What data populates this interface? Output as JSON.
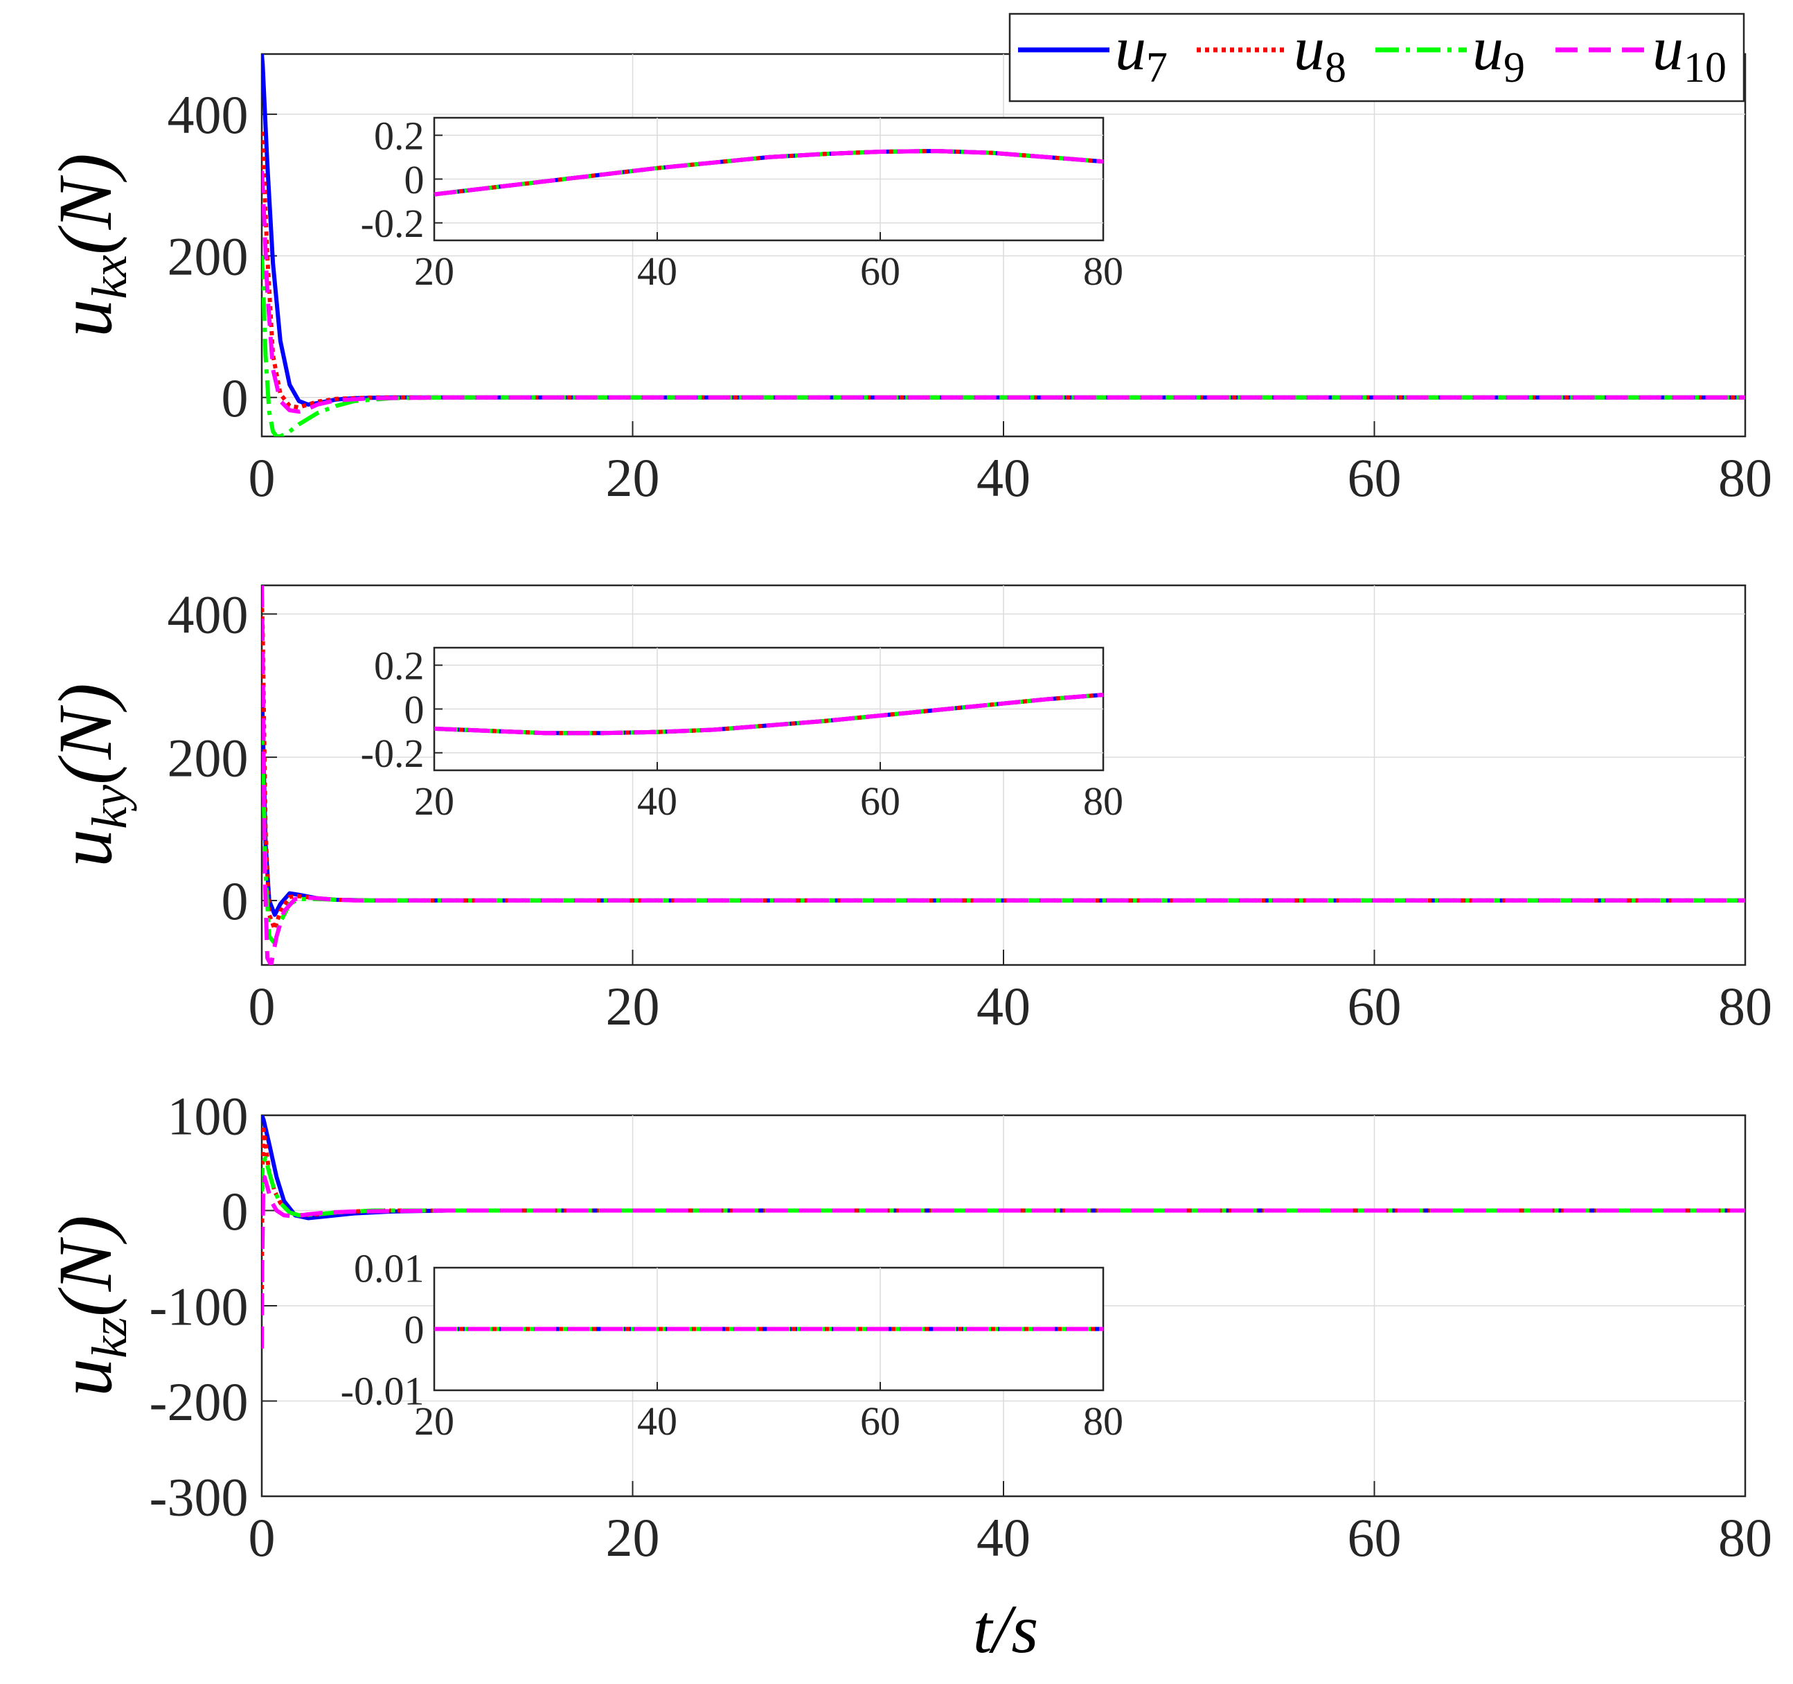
{
  "colors": {
    "u7": "#0000ff",
    "u8": "#ff0000",
    "u9": "#00ff00",
    "u10": "#ff00ff"
  },
  "chart_data": [
    {
      "type": "line",
      "ylabel_base": "u",
      "ylabel_sub": "kx",
      "ylabel_unit": "(N)",
      "xlim": [
        0,
        80
      ],
      "ylim": [
        -55,
        485
      ],
      "xticks": [
        0,
        20,
        40,
        60,
        80
      ],
      "yticks": [
        0,
        200,
        400
      ],
      "grid": true,
      "legend": {
        "placement": "top-right",
        "entries": [
          {
            "base": "u",
            "sub": "7",
            "series": "u7",
            "style": "solid"
          },
          {
            "base": "u",
            "sub": "8",
            "series": "u8",
            "style": "dotted"
          },
          {
            "base": "u",
            "sub": "9",
            "series": "u9",
            "style": "dashdot"
          },
          {
            "base": "u",
            "sub": "10",
            "series": "u10",
            "style": "dashed"
          }
        ]
      },
      "series": [
        {
          "key": "u7",
          "style": "solid",
          "x": [
            0,
            0.05,
            0.3,
            0.6,
            1.0,
            1.5,
            2.0,
            2.5,
            3.0,
            4.0,
            5.0,
            7.0,
            10.0,
            80
          ],
          "y": [
            485,
            470,
            330,
            190,
            80,
            18,
            -5,
            -10,
            -8,
            -3,
            -1,
            0,
            0,
            0
          ]
        },
        {
          "key": "u8",
          "style": "dotted",
          "x": [
            0,
            0.05,
            0.3,
            0.6,
            1.0,
            1.5,
            2.0,
            2.5,
            3.0,
            4.0,
            6.0,
            10.0,
            80
          ],
          "y": [
            375,
            360,
            200,
            60,
            5,
            -12,
            -14,
            -10,
            -6,
            -2,
            0,
            0,
            0
          ]
        },
        {
          "key": "u9",
          "style": "dashdot",
          "x": [
            0,
            0.05,
            0.2,
            0.4,
            0.6,
            0.8,
            1.0,
            1.5,
            2.0,
            3.0,
            4.0,
            5.0,
            7.0,
            10.0,
            80
          ],
          "y": [
            200,
            180,
            60,
            -20,
            -48,
            -55,
            -55,
            -48,
            -38,
            -22,
            -12,
            -5,
            -1,
            0,
            0
          ]
        },
        {
          "key": "u10",
          "style": "dashed",
          "x": [
            0,
            0.05,
            0.3,
            0.6,
            1.0,
            1.5,
            2.0,
            2.5,
            3.0,
            4.0,
            6.0,
            10.0,
            80
          ],
          "y": [
            320,
            300,
            150,
            40,
            -5,
            -18,
            -20,
            -16,
            -10,
            -4,
            -1,
            0,
            0
          ]
        }
      ],
      "inset": {
        "xlim": [
          20,
          80
        ],
        "ylim": [
          -0.28,
          0.28
        ],
        "xticks": [
          20,
          40,
          60,
          80
        ],
        "yticks": [
          0.2,
          0,
          -0.2
        ],
        "ytick_labels": [
          "0.2",
          "0",
          "-0.2"
        ],
        "x": [
          20,
          25,
          30,
          35,
          40,
          45,
          50,
          55,
          60,
          65,
          70,
          75,
          80
        ],
        "y": [
          -0.07,
          -0.04,
          -0.01,
          0.02,
          0.05,
          0.075,
          0.1,
          0.115,
          0.125,
          0.128,
          0.12,
          0.1,
          0.08
        ]
      }
    },
    {
      "type": "line",
      "ylabel_base": "u",
      "ylabel_sub": "ky",
      "ylabel_unit": "(N)",
      "xlim": [
        0,
        80
      ],
      "ylim": [
        -90,
        440
      ],
      "xticks": [
        0,
        20,
        40,
        60,
        80
      ],
      "yticks": [
        0,
        200,
        400
      ],
      "grid": true,
      "series": [
        {
          "key": "u7",
          "style": "solid",
          "x": [
            0,
            0.05,
            0.2,
            0.4,
            0.7,
            1.0,
            1.5,
            2.0,
            3.0,
            4.0,
            6.0,
            10.0,
            80
          ],
          "y": [
            300,
            250,
            80,
            0,
            -20,
            -5,
            10,
            8,
            3,
            1,
            0,
            0,
            0
          ]
        },
        {
          "key": "u8",
          "style": "dotted",
          "x": [
            0,
            0.05,
            0.2,
            0.4,
            0.7,
            1.0,
            1.5,
            2.0,
            3.0,
            4.0,
            6.0,
            10.0,
            80
          ],
          "y": [
            420,
            380,
            100,
            -20,
            -40,
            -15,
            5,
            6,
            3,
            1,
            0,
            0,
            0
          ]
        },
        {
          "key": "u9",
          "style": "dashdot",
          "x": [
            0,
            0.05,
            0.2,
            0.4,
            0.7,
            1.0,
            1.5,
            2.0,
            3.0,
            4.0,
            6.0,
            10.0,
            80
          ],
          "y": [
            250,
            200,
            40,
            -50,
            -60,
            -30,
            -5,
            2,
            2,
            1,
            0,
            0,
            0
          ]
        },
        {
          "key": "u10",
          "style": "dashed",
          "x": [
            0,
            0.05,
            0.15,
            0.3,
            0.5,
            0.8,
            1.2,
            1.8,
            2.5,
            3.5,
            5.0,
            10.0,
            80
          ],
          "y": [
            440,
            350,
            50,
            -80,
            -90,
            -50,
            -15,
            2,
            4,
            2,
            0,
            0,
            0
          ]
        }
      ],
      "inset": {
        "xlim": [
          20,
          80
        ],
        "ylim": [
          -0.28,
          0.28
        ],
        "xticks": [
          20,
          40,
          60,
          80
        ],
        "yticks": [
          0.2,
          0,
          -0.2
        ],
        "ytick_labels": [
          "0.2",
          "0",
          "-0.2"
        ],
        "x": [
          20,
          25,
          30,
          35,
          40,
          45,
          50,
          55,
          60,
          65,
          70,
          75,
          80
        ],
        "y": [
          -0.09,
          -0.1,
          -0.11,
          -0.11,
          -0.105,
          -0.095,
          -0.075,
          -0.055,
          -0.03,
          -0.005,
          0.02,
          0.045,
          0.065
        ]
      }
    },
    {
      "type": "line",
      "ylabel_base": "u",
      "ylabel_sub": "kz",
      "ylabel_unit": "(N)",
      "xlim": [
        0,
        80
      ],
      "ylim": [
        -300,
        100
      ],
      "xticks": [
        0,
        20,
        40,
        60,
        80
      ],
      "yticks": [
        100,
        0,
        -100,
        -200,
        -300
      ],
      "ytick_labels": [
        "100",
        "0",
        "-100",
        "-200",
        "-300"
      ],
      "grid": true,
      "series": [
        {
          "key": "u7",
          "style": "solid",
          "x": [
            0,
            0.1,
            0.4,
            0.8,
            1.2,
            1.8,
            2.5,
            3.5,
            5.0,
            7.0,
            10.0,
            80
          ],
          "y": [
            100,
            95,
            70,
            35,
            10,
            -5,
            -8,
            -6,
            -3,
            -1,
            0,
            0
          ]
        },
        {
          "key": "u8",
          "style": "dotted",
          "x": [
            0,
            0.03,
            0.1,
            0.2,
            0.4,
            0.7,
            1.0,
            1.5,
            2.0,
            3.0,
            4.0,
            6.0,
            10.0,
            80
          ],
          "y": [
            -100,
            40,
            85,
            70,
            40,
            20,
            8,
            -2,
            -5,
            -4,
            -2,
            0,
            0,
            0
          ]
        },
        {
          "key": "u9",
          "style": "dashdot",
          "x": [
            0,
            0.05,
            0.2,
            0.4,
            0.7,
            1.0,
            1.5,
            2.0,
            3.0,
            4.0,
            6.0,
            10.0,
            80
          ],
          "y": [
            20,
            50,
            55,
            40,
            20,
            8,
            -2,
            -5,
            -4,
            -2,
            0,
            0,
            0
          ]
        },
        {
          "key": "u10",
          "style": "dashed",
          "x": [
            0,
            0.02,
            0.08,
            0.15,
            0.3,
            0.5,
            0.8,
            1.2,
            1.8,
            2.5,
            3.5,
            5.0,
            10.0,
            80
          ],
          "y": [
            -145,
            -60,
            20,
            35,
            25,
            10,
            0,
            -5,
            -6,
            -4,
            -2,
            -1,
            0,
            0
          ]
        }
      ],
      "inset": {
        "xlim": [
          20,
          80
        ],
        "ylim": [
          -0.01,
          0.01
        ],
        "xticks": [
          20,
          40,
          60,
          80
        ],
        "yticks": [
          0.01,
          0,
          -0.01
        ],
        "ytick_labels": [
          "0.01",
          "0",
          "-0.01"
        ],
        "x": [
          20,
          80
        ],
        "y": [
          0,
          0
        ]
      }
    }
  ],
  "xlabel": "t/s"
}
